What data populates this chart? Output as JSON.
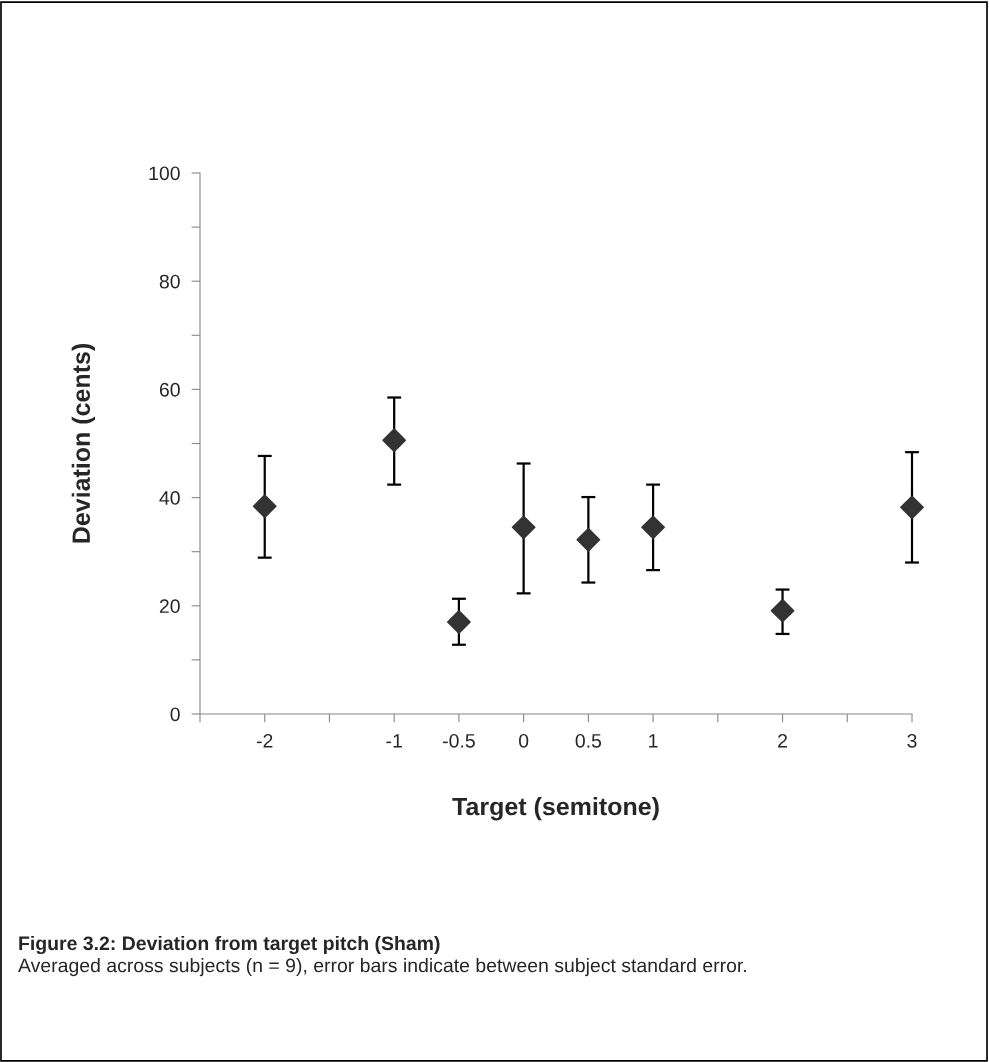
{
  "chart_data": {
    "type": "scatter",
    "title": "Figure 3.2: Deviation from target pitch (Sham)",
    "annotations": [
      "Averaged across subjects (n = 9), error bars indicate between subject standard error."
    ],
    "xlabel": "Target (semitone)",
    "ylabel": "Deviation (cents)",
    "x": [
      -2,
      -1,
      -0.5,
      0,
      0.5,
      1,
      2,
      3
    ],
    "series": [
      {
        "color": "#333333",
        "values": [
          38.4,
          50.6,
          17.0,
          34.5,
          32.2,
          34.5,
          19.1,
          38.2
        ],
        "errors": [
          [
            28.9,
            47.7
          ],
          [
            42.4,
            58.5
          ],
          [
            12.8,
            21.3
          ],
          [
            22.3,
            46.3
          ],
          [
            24.3,
            40.1
          ],
          [
            26.6,
            42.4
          ],
          [
            14.8,
            23.0
          ],
          [
            28.0,
            48.4
          ]
        ]
      }
    ],
    "marker": "diamond",
    "xlim": [
      -2.5,
      3
    ],
    "xticks": [
      {
        "value": -2.5,
        "label": null
      },
      -2,
      {
        "value": -1.5,
        "label": null
      },
      -1,
      -0.5,
      0,
      0.5,
      1,
      {
        "value": 1.5,
        "label": null
      },
      2,
      {
        "value": 2.5,
        "label": null
      },
      3
    ],
    "ylim": [
      0,
      100
    ],
    "yticks": [
      0,
      {
        "value": 10,
        "label": null
      },
      20,
      {
        "value": 30,
        "label": null
      },
      40,
      {
        "value": 50,
        "label": null
      },
      60,
      {
        "value": 70,
        "label": null
      },
      80,
      {
        "value": 90,
        "label": null
      },
      100
    ],
    "grid": false
  }
}
